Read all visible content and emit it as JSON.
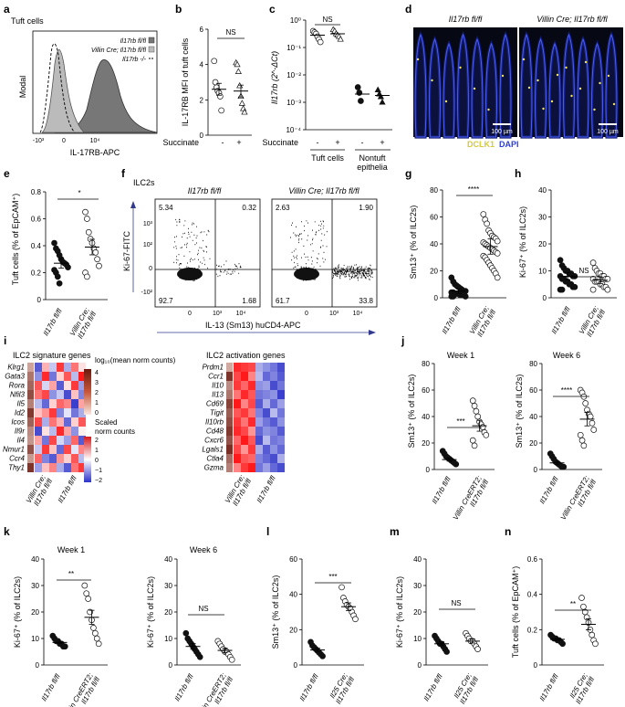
{
  "panel_letters": [
    "a",
    "b",
    "c",
    "d",
    "e",
    "f",
    "g",
    "h",
    "i",
    "j",
    "k",
    "l",
    "m",
    "n"
  ],
  "chart_data": [
    {
      "id": "a",
      "type": "area",
      "title": "Tuft cells",
      "xlabel": "IL-17RB-APC",
      "ylabel": "Modal",
      "x_ticks": [
        "-10³",
        "0",
        "10⁴"
      ],
      "legend": [
        "Il17rb fl/fl",
        "Villin Cre; Il17rb fl/fl",
        "Il17rb -/-"
      ],
      "legend_colors": [
        "#777777",
        "#bbbbbb",
        "#ffffff"
      ],
      "series_peaks": [
        {
          "name": "Il17rb fl/fl",
          "x": 0.6
        },
        {
          "name": "Villin Cre; Il17rb fl/fl",
          "x": -0.35
        },
        {
          "name": "Il17rb -/-",
          "x": -0.55
        }
      ]
    },
    {
      "id": "b",
      "type": "scatter",
      "ylabel": "IL-17RB MFI of tuft cells",
      "ylim": [
        0,
        6
      ],
      "yticks": [
        0,
        2,
        4,
        6
      ],
      "categories": [
        "-",
        "+"
      ],
      "xgroup_label": "Succinate",
      "significance": "NS",
      "series": [
        {
          "name": "-",
          "marker": "circle",
          "values": [
            4.2,
            3.0,
            2.7,
            2.5,
            2.4,
            2.2,
            1.4
          ],
          "mean": 2.6
        },
        {
          "name": "+",
          "marker": "triangle",
          "values": [
            4.1,
            4.0,
            3.6,
            2.8,
            2.2,
            1.8,
            1.5,
            1.3
          ],
          "mean": 2.5
        }
      ]
    },
    {
      "id": "c",
      "type": "scatter",
      "scale": "log",
      "ylabel": "Il17rb (2^-ΔCt)",
      "ylim_exp": [
        -4,
        0
      ],
      "yticks": [
        "10⁻⁴",
        "10⁻³",
        "10⁻²",
        "10⁻¹",
        "10⁰"
      ],
      "xgroup_label": "Succinate",
      "x_labels": [
        "-",
        "+",
        "-",
        "+"
      ],
      "group_labels": [
        "Tuft cells",
        "Nontuft epithelia"
      ],
      "significance": "NS",
      "series": [
        {
          "name": "Tuft cells -",
          "marker": "circle",
          "exp": [
            -0.4,
            -0.45,
            -0.5,
            -0.6,
            -0.7,
            -0.8
          ],
          "mean_exp": -0.55
        },
        {
          "name": "Tuft cells +",
          "marker": "triangle",
          "exp": [
            -0.35,
            -0.4,
            -0.5,
            -0.55,
            -0.6,
            -0.7
          ],
          "mean_exp": -0.5
        },
        {
          "name": "Nontuft -",
          "marker": "filled-circle",
          "exp": [
            -2.45,
            -2.65,
            -2.95
          ],
          "mean_exp": -2.7
        },
        {
          "name": "Nontuft +",
          "marker": "filled-triangle",
          "exp": [
            -2.55,
            -2.7,
            -2.8,
            -3.0
          ],
          "mean_exp": -2.75
        }
      ]
    },
    {
      "id": "e",
      "type": "scatter",
      "ylabel": "Tuft cells (% of EpCAM⁺)",
      "ylim": [
        0,
        0.8
      ],
      "yticks": [
        "0",
        "0.2",
        "0.4",
        "0.6",
        "0.8"
      ],
      "categories": [
        "Il17rb fl/fl",
        "Villin Cre; Il17rb fl/fl"
      ],
      "significance": "*",
      "series": [
        {
          "name": "Il17rb fl/fl",
          "marker": "filled-circle",
          "values": [
            0.42,
            0.38,
            0.36,
            0.33,
            0.3,
            0.28,
            0.27,
            0.26,
            0.24,
            0.22,
            0.2,
            0.17,
            0.12
          ],
          "mean": 0.27
        },
        {
          "name": "Villin Cre; Il17rb fl/fl",
          "marker": "circle",
          "values": [
            0.65,
            0.6,
            0.5,
            0.45,
            0.42,
            0.38,
            0.35,
            0.3,
            0.25,
            0.2,
            0.17
          ],
          "mean": 0.39
        }
      ]
    },
    {
      "id": "f",
      "type": "scatter",
      "title": "ILC2s",
      "xlabel": "IL-13 (Sm13) huCD4-APC",
      "ylabel": "Ki-67-FITC",
      "x_ticks": [
        "0",
        "10³",
        "10⁴"
      ],
      "y_ticks": [
        "-10²",
        "0",
        "10²",
        "10³"
      ],
      "plots": [
        {
          "label": "Il17rb fl/fl",
          "quadrants": {
            "UL": "5.34",
            "UR": "0.32",
            "LL": "92.7",
            "LR": "1.68"
          }
        },
        {
          "label": "Villin Cre; Il17rb fl/fl",
          "quadrants": {
            "UL": "2.63",
            "UR": "1.90",
            "LL": "61.7",
            "LR": "33.8"
          }
        }
      ]
    },
    {
      "id": "g",
      "type": "scatter",
      "ylabel": "Sm13⁺ (% of ILC2s)",
      "ylim": [
        0,
        80
      ],
      "yticks": [
        0,
        20,
        40,
        60,
        80
      ],
      "categories": [
        "Il17rb fl/fl",
        "Villin Cre; Il17rb fl/fl"
      ],
      "significance": "****",
      "series": [
        {
          "name": "Il17rb fl/fl",
          "marker": "filled-circle",
          "values": [
            15,
            12,
            10,
            9,
            8,
            7,
            6,
            5,
            5,
            4,
            4,
            3,
            3,
            3,
            2,
            2,
            2,
            1,
            1,
            1
          ],
          "mean": 5
        },
        {
          "name": "Villin Cre; Il17rb fl/fl",
          "marker": "circle",
          "values": [
            62,
            58,
            55,
            50,
            48,
            46,
            45,
            44,
            42,
            41,
            40,
            39,
            38,
            37,
            36,
            35,
            34,
            33,
            31,
            30,
            28,
            26,
            24,
            22,
            20,
            18,
            15
          ],
          "mean": 38
        }
      ]
    },
    {
      "id": "h",
      "type": "scatter",
      "ylabel": "Ki-67⁺ (% of ILC2s)",
      "ylim": [
        0,
        40
      ],
      "yticks": [
        0,
        10,
        20,
        30,
        40
      ],
      "categories": [
        "Il17rb fl/fl",
        "Villin Cre; Il17rb fl/fl"
      ],
      "significance": "NS",
      "series": [
        {
          "name": "Il17rb fl/fl",
          "marker": "filled-circle",
          "values": [
            14,
            12,
            11,
            10,
            10,
            9,
            9,
            8,
            8,
            8,
            7,
            7,
            6,
            6,
            5,
            5,
            4,
            4,
            3,
            3
          ],
          "mean": 8
        },
        {
          "name": "Villin Cre; Il17rb fl/fl",
          "marker": "circle",
          "values": [
            13,
            11,
            10,
            9,
            9,
            8,
            8,
            7,
            7,
            7,
            6,
            6,
            6,
            5,
            5,
            4,
            4,
            3,
            3
          ],
          "mean": 6.5
        }
      ]
    },
    {
      "id": "i1",
      "type": "heatmap",
      "title": "ILC2 signature genes",
      "rows": [
        "Klrg1",
        "Gata3",
        "Rora",
        "Nfil3",
        "Il5",
        "Id2",
        "Icos",
        "Il9r",
        "Il4",
        "Nmur1",
        "Ccr4",
        "Thy1"
      ],
      "col_groups": [
        "Villin Cre; Il17rb fl/fl",
        "Il17rb fl/fl"
      ],
      "n_cols": 7,
      "values": [
        [
          -1.2,
          0.5,
          -0.4,
          1.3,
          -0.6,
          0.9,
          0.2
        ],
        [
          -0.8,
          1.4,
          -1.0,
          0.3,
          1.1,
          -0.5,
          1.5
        ],
        [
          1.1,
          -0.3,
          0.6,
          -1.2,
          0.2,
          1.3,
          -0.7
        ],
        [
          0.9,
          1.2,
          -0.8,
          -0.4,
          -1.3,
          0.4,
          -0.9
        ],
        [
          -0.5,
          -1.1,
          0.3,
          1.0,
          0.8,
          -1.4,
          0.6
        ],
        [
          0.4,
          0.7,
          1.3,
          -0.9,
          -0.2,
          -1.0,
          -0.6
        ],
        [
          1.2,
          -0.6,
          0.9,
          0.5,
          -1.1,
          0.3,
          1.1
        ],
        [
          -1.3,
          0.2,
          -0.5,
          1.4,
          0.6,
          -0.8,
          0.1
        ],
        [
          0.6,
          -1.0,
          1.2,
          -0.3,
          -0.7,
          1.0,
          -1.2
        ],
        [
          -0.4,
          1.3,
          0.4,
          -1.1,
          1.2,
          -0.2,
          0.8
        ],
        [
          1.0,
          -0.9,
          -1.2,
          0.7,
          0.3,
          1.1,
          -0.5
        ],
        [
          -0.7,
          0.4,
          0.8,
          -0.6,
          -1.2,
          0.9,
          1.3
        ]
      ],
      "row_bar_values": [
        1.3,
        2.2,
        2.5,
        3.0,
        2.0,
        3.4,
        2.6,
        1.8,
        1.6,
        2.9,
        1.5,
        3.5
      ],
      "legend_top_title": "log₁₀(mean norm counts)",
      "legend_top_ticks": [
        "4",
        "3",
        "2",
        "1",
        "0"
      ],
      "legend_bottom_title": "Scaled norm counts",
      "legend_bottom_ticks": [
        "2",
        "1",
        "0",
        "−1",
        "−2"
      ]
    },
    {
      "id": "i2",
      "type": "heatmap",
      "title": "ILC2 activation genes",
      "rows": [
        "Prdm1",
        "Ccr1",
        "Il10",
        "Il13",
        "Cd69",
        "Tigit",
        "Il10rb",
        "Cd48",
        "Cxcr6",
        "Lgals1",
        "Ctla4",
        "Gzma"
      ],
      "col_groups": [
        "Villin Cre; Il17rb fl/fl",
        "Il17rb fl/fl"
      ],
      "n_cols": 7,
      "values": [
        [
          1.4,
          1.3,
          1.2,
          -0.6,
          -0.8,
          -1.0,
          -1.3
        ],
        [
          1.2,
          1.5,
          0.8,
          -0.5,
          -1.1,
          -0.9,
          -1.2
        ],
        [
          1.3,
          1.0,
          1.4,
          -0.8,
          -0.7,
          -1.3,
          -1.0
        ],
        [
          0.9,
          1.4,
          1.1,
          -1.0,
          -0.9,
          -0.8,
          -1.4
        ],
        [
          1.5,
          0.8,
          1.2,
          -1.2,
          -0.6,
          -1.1,
          -0.7
        ],
        [
          1.1,
          1.3,
          0.9,
          -0.9,
          -1.3,
          -0.5,
          -1.0
        ],
        [
          1.3,
          0.9,
          1.4,
          -0.7,
          -1.0,
          -1.2,
          -0.8
        ],
        [
          1.4,
          1.2,
          0.7,
          -1.1,
          -0.8,
          -0.9,
          -1.2
        ],
        [
          1.0,
          1.5,
          1.1,
          -1.3,
          -0.5,
          -1.0,
          -0.9
        ],
        [
          1.2,
          0.7,
          1.3,
          -0.6,
          -1.2,
          -0.8,
          -1.1
        ],
        [
          1.5,
          1.1,
          1.0,
          -0.9,
          -1.1,
          -1.3,
          -0.6
        ],
        [
          0.8,
          1.3,
          1.5,
          -1.0,
          -0.7,
          -1.1,
          -1.3
        ]
      ],
      "row_bar_values": [
        1.2,
        3.5,
        1.8,
        2.2,
        3.2,
        2.7,
        3.0,
        3.4,
        2.9,
        3.6,
        2.4,
        2.0
      ]
    },
    {
      "id": "j1",
      "type": "scatter",
      "title": "Week 1",
      "ylabel": "Sm13⁺ (% of ILC2s)",
      "ylim": [
        0,
        80
      ],
      "yticks": [
        0,
        20,
        40,
        60,
        80
      ],
      "categories": [
        "Il17rb fl/fl",
        "Villin CreERT2; Il17rb fl/fl"
      ],
      "significance": "***",
      "series": [
        {
          "name": "Il17rb fl/fl",
          "marker": "filled-circle",
          "values": [
            14,
            12,
            10,
            9,
            8,
            7,
            6,
            5,
            4
          ],
          "mean": 7.5
        },
        {
          "name": "Villin CreERT2; Il17rb fl/fl",
          "marker": "circle",
          "values": [
            52,
            48,
            44,
            40,
            36,
            34,
            32,
            28,
            26,
            22,
            18
          ],
          "mean": 33
        }
      ]
    },
    {
      "id": "j2",
      "type": "scatter",
      "title": "Week 6",
      "ylabel": "Sm13⁺ (% of ILC2s)",
      "ylim": [
        0,
        80
      ],
      "yticks": [
        0,
        20,
        40,
        60,
        80
      ],
      "categories": [
        "Il17rb fl/fl",
        "Villin CreERT2; Il17rb fl/fl"
      ],
      "significance": "****",
      "series": [
        {
          "name": "Il17rb fl/fl",
          "marker": "filled-circle",
          "values": [
            12,
            10,
            8,
            6,
            5,
            4,
            3,
            2,
            2
          ],
          "mean": 5
        },
        {
          "name": "Villin CreERT2; Il17rb fl/fl",
          "marker": "circle",
          "values": [
            60,
            58,
            55,
            50,
            45,
            42,
            40,
            35,
            30,
            26,
            22,
            18
          ],
          "mean": 38
        }
      ]
    },
    {
      "id": "k1",
      "type": "scatter",
      "title": "Week 1",
      "ylabel": "Ki-67⁺ (% of ILC2s)",
      "ylim": [
        0,
        40
      ],
      "yticks": [
        0,
        10,
        20,
        30,
        40
      ],
      "categories": [
        "Il17rb fl/fl",
        "Villin CreERT2; Il17rb fl/fl"
      ],
      "significance": "**",
      "series": [
        {
          "name": "Il17rb fl/fl",
          "marker": "filled-circle",
          "values": [
            11,
            10,
            9,
            9,
            8,
            8,
            7,
            7
          ],
          "mean": 8.5
        },
        {
          "name": "Villin CreERT2; Il17rb fl/fl",
          "marker": "circle",
          "values": [
            30,
            27,
            25,
            20,
            17,
            14,
            12,
            10,
            8
          ],
          "mean": 18
        }
      ]
    },
    {
      "id": "k2",
      "type": "scatter",
      "title": "Week 6",
      "ylabel": "Ki-67⁺ (% of ILC2s)",
      "ylim": [
        0,
        40
      ],
      "yticks": [
        0,
        10,
        20,
        30,
        40
      ],
      "categories": [
        "Il17rb fl/fl",
        "Villin CreERT2; Il17rb fl/fl"
      ],
      "significance": "NS",
      "series": [
        {
          "name": "Il17rb fl/fl",
          "marker": "filled-circle",
          "values": [
            12,
            10,
            9,
            8,
            7,
            6,
            5,
            4,
            3
          ],
          "mean": 7
        },
        {
          "name": "Villin CreERT2; Il17rb fl/fl",
          "marker": "circle",
          "values": [
            9,
            8,
            7,
            6,
            5,
            5,
            4,
            3,
            2
          ],
          "mean": 5.5
        }
      ]
    },
    {
      "id": "l",
      "type": "scatter",
      "ylabel": "Sm13⁺ (% of ILC2s)",
      "ylim": [
        0,
        60
      ],
      "yticks": [
        0,
        20,
        40,
        60
      ],
      "categories": [
        "Il17rb fl/fl",
        "Il25 Cre; Il17rb fl/fl"
      ],
      "significance": "***",
      "series": [
        {
          "name": "Il17rb fl/fl",
          "marker": "filled-circle",
          "values": [
            13,
            11,
            10,
            9,
            8,
            7,
            6,
            5
          ],
          "mean": 8.5
        },
        {
          "name": "Il25 Cre; Il17rb fl/fl",
          "marker": "circle",
          "values": [
            44,
            38,
            36,
            34,
            33,
            32,
            30,
            28,
            26
          ],
          "mean": 33
        }
      ]
    },
    {
      "id": "m",
      "type": "scatter",
      "ylabel": "Ki-67⁺ (% of ILC2s)",
      "ylim": [
        0,
        40
      ],
      "yticks": [
        0,
        10,
        20,
        30,
        40
      ],
      "categories": [
        "Il17rb fl/fl",
        "Il25 Cre; Il17rb fl/fl"
      ],
      "significance": "NS",
      "series": [
        {
          "name": "Il17rb fl/fl",
          "marker": "filled-circle",
          "values": [
            11,
            10,
            9,
            8,
            8,
            7,
            6,
            5
          ],
          "mean": 8
        },
        {
          "name": "Il25 Cre; Il17rb fl/fl",
          "marker": "circle",
          "values": [
            12,
            11,
            10,
            9,
            9,
            8,
            7,
            6
          ],
          "mean": 9
        }
      ]
    },
    {
      "id": "n",
      "type": "scatter",
      "ylabel": "Tuft cells (% of EpCAM⁺)",
      "ylim": [
        0,
        0.6
      ],
      "yticks": [
        "0",
        "0.2",
        "0.4",
        "0.6"
      ],
      "categories": [
        "Il17rb fl/fl",
        "Il25 Cre; Il17rb fl/fl"
      ],
      "significance": "**",
      "series": [
        {
          "name": "Il17rb fl/fl",
          "marker": "filled-circle",
          "values": [
            0.17,
            0.16,
            0.15,
            0.15,
            0.14,
            0.14,
            0.13,
            0.12
          ],
          "mean": 0.145
        },
        {
          "name": "Il25 Cre; Il17rb fl/fl",
          "marker": "circle",
          "values": [
            0.38,
            0.33,
            0.3,
            0.27,
            0.24,
            0.2,
            0.17,
            0.14,
            0.12
          ],
          "mean": 0.23
        }
      ]
    }
  ],
  "micrograph_d": {
    "labels": [
      "Il17rb fl/fl",
      "Villin Cre; Il17rb fl/fl"
    ],
    "scalebar": "100 µm",
    "stain_legend": [
      "DCLK1",
      "DAPI"
    ],
    "stain_colors": [
      "#e6d84a",
      "#3b54e0"
    ]
  }
}
